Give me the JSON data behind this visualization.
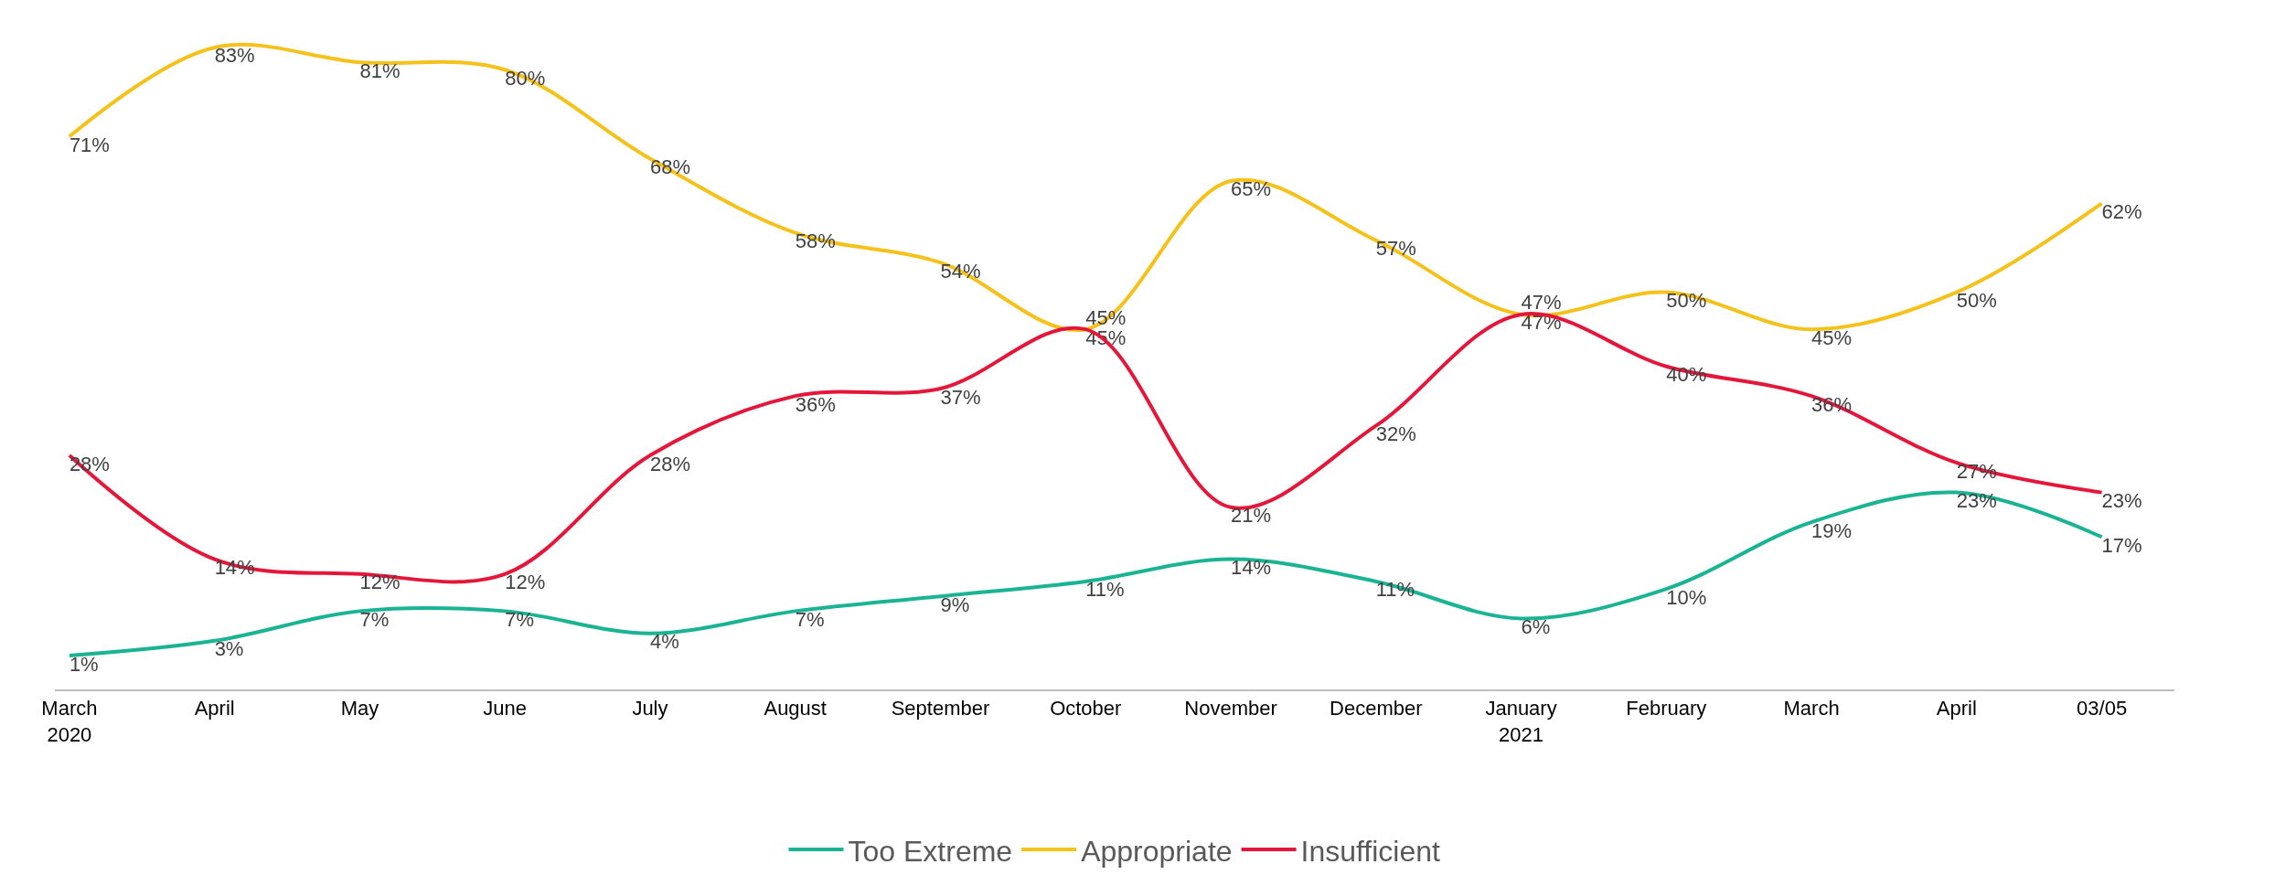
{
  "chart_data": {
    "type": "line",
    "categories": [
      "March\n2020",
      "April",
      "May",
      "June",
      "July",
      "August",
      "September",
      "October",
      "November",
      "December",
      "January\n2021",
      "February",
      "March",
      "April",
      "03/05"
    ],
    "series": [
      {
        "name": "Too Extreme",
        "color": "#1ab394",
        "values": [
          1,
          3,
          7,
          7,
          4,
          7,
          9,
          11,
          14,
          11,
          6,
          10,
          19,
          23,
          17
        ],
        "value_labels": [
          "1%",
          "3%",
          "7%",
          "7%",
          "4%",
          "7%",
          "9%",
          "11%",
          "14%",
          "11%",
          "6%",
          "10%",
          "19%",
          "23%",
          "17%"
        ]
      },
      {
        "name": "Appropriate",
        "color": "#f5c21b",
        "values": [
          71,
          83,
          81,
          80,
          68,
          58,
          54,
          45,
          65,
          57,
          47,
          50,
          45,
          50,
          62
        ],
        "value_labels": [
          "71%",
          "83%",
          "81%",
          "80%",
          "68%",
          "58%",
          "54%",
          "45%",
          "65%",
          "57%",
          "47%",
          "50%",
          "45%",
          "50%",
          "62%"
        ]
      },
      {
        "name": "Insufficient",
        "color": "#e4173b",
        "values": [
          28,
          14,
          12,
          12,
          28,
          36,
          37,
          45,
          21,
          32,
          47,
          40,
          36,
          27,
          23
        ],
        "value_labels": [
          "28%",
          "14%",
          "12%",
          "12%",
          "28%",
          "36%",
          "37%",
          "45%",
          "21%",
          "32%",
          "47%",
          "40%",
          "36%",
          "27%",
          "23%"
        ]
      }
    ],
    "tick_labels": "x",
    "legend": "bottom",
    "marker": "none",
    "line_style": "solid"
  }
}
